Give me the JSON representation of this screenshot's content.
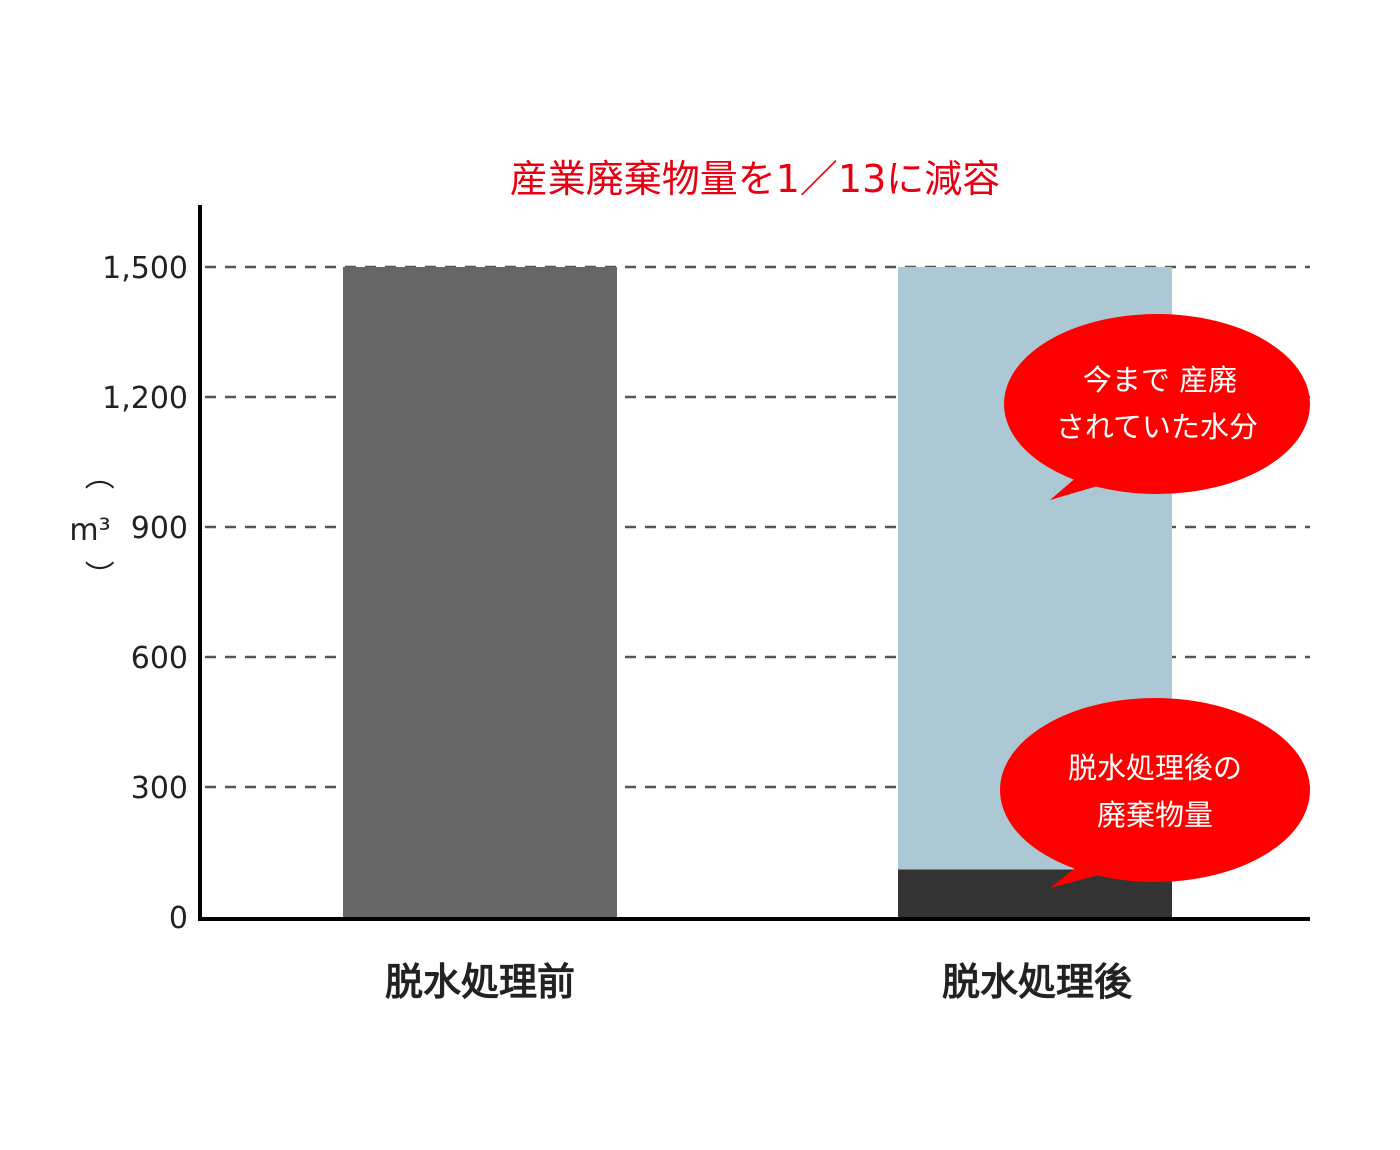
{
  "chart_data": {
    "type": "bar",
    "title": "産業廃棄物量を1／13に減容",
    "ylabel": "m³",
    "ylabel_parts": {
      "open": "（",
      "unit": "m³",
      "close": "）"
    },
    "ylim": [
      0,
      1600
    ],
    "yticks": [
      0,
      300,
      600,
      900,
      1200,
      1500
    ],
    "ytick_labels": [
      "0",
      "300",
      "600",
      "900",
      "1,200",
      "1,500"
    ],
    "grid": true,
    "categories": [
      "脱水処理前",
      "脱水処理後"
    ],
    "series": [
      {
        "color": "#666666",
        "values": [
          1500,
          0
        ]
      },
      {
        "color": "#333333",
        "values": [
          0,
          110
        ]
      },
      {
        "color": "#acc8d4",
        "values": [
          0,
          1390
        ]
      }
    ],
    "annotations": [
      {
        "lines": [
          "今まで 産廃",
          "されていた水分"
        ],
        "color": "#ff0000"
      },
      {
        "lines": [
          "脱水処理後の",
          "廃棄物量"
        ],
        "color": "#ff0000"
      }
    ]
  }
}
